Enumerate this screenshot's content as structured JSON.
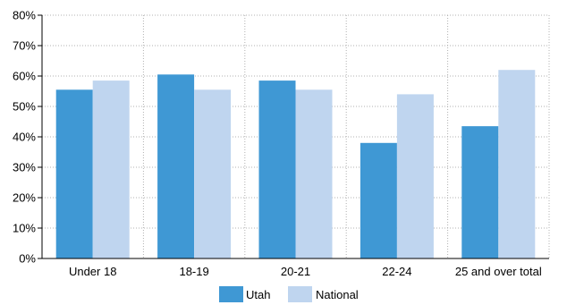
{
  "chart_data": {
    "type": "bar",
    "categories": [
      "Under 18",
      "18-19",
      "20-21",
      "22-24",
      "25 and over total"
    ],
    "series": [
      {
        "name": "Utah",
        "values": [
          55.5,
          60.5,
          58.5,
          38,
          43.5
        ]
      },
      {
        "name": "National",
        "values": [
          58.5,
          55.5,
          55.5,
          54,
          62
        ]
      }
    ],
    "ylim": [
      0,
      80
    ],
    "yticks": [
      "0%",
      "10%",
      "20%",
      "30%",
      "40%",
      "50%",
      "60%",
      "70%",
      "80%"
    ],
    "grid": true,
    "legend": "bottom-center",
    "colors": {
      "Utah": "#3f98d4",
      "National": "#bfd5ef",
      "grid": "#b0b0b0",
      "axis": "#000000"
    }
  }
}
